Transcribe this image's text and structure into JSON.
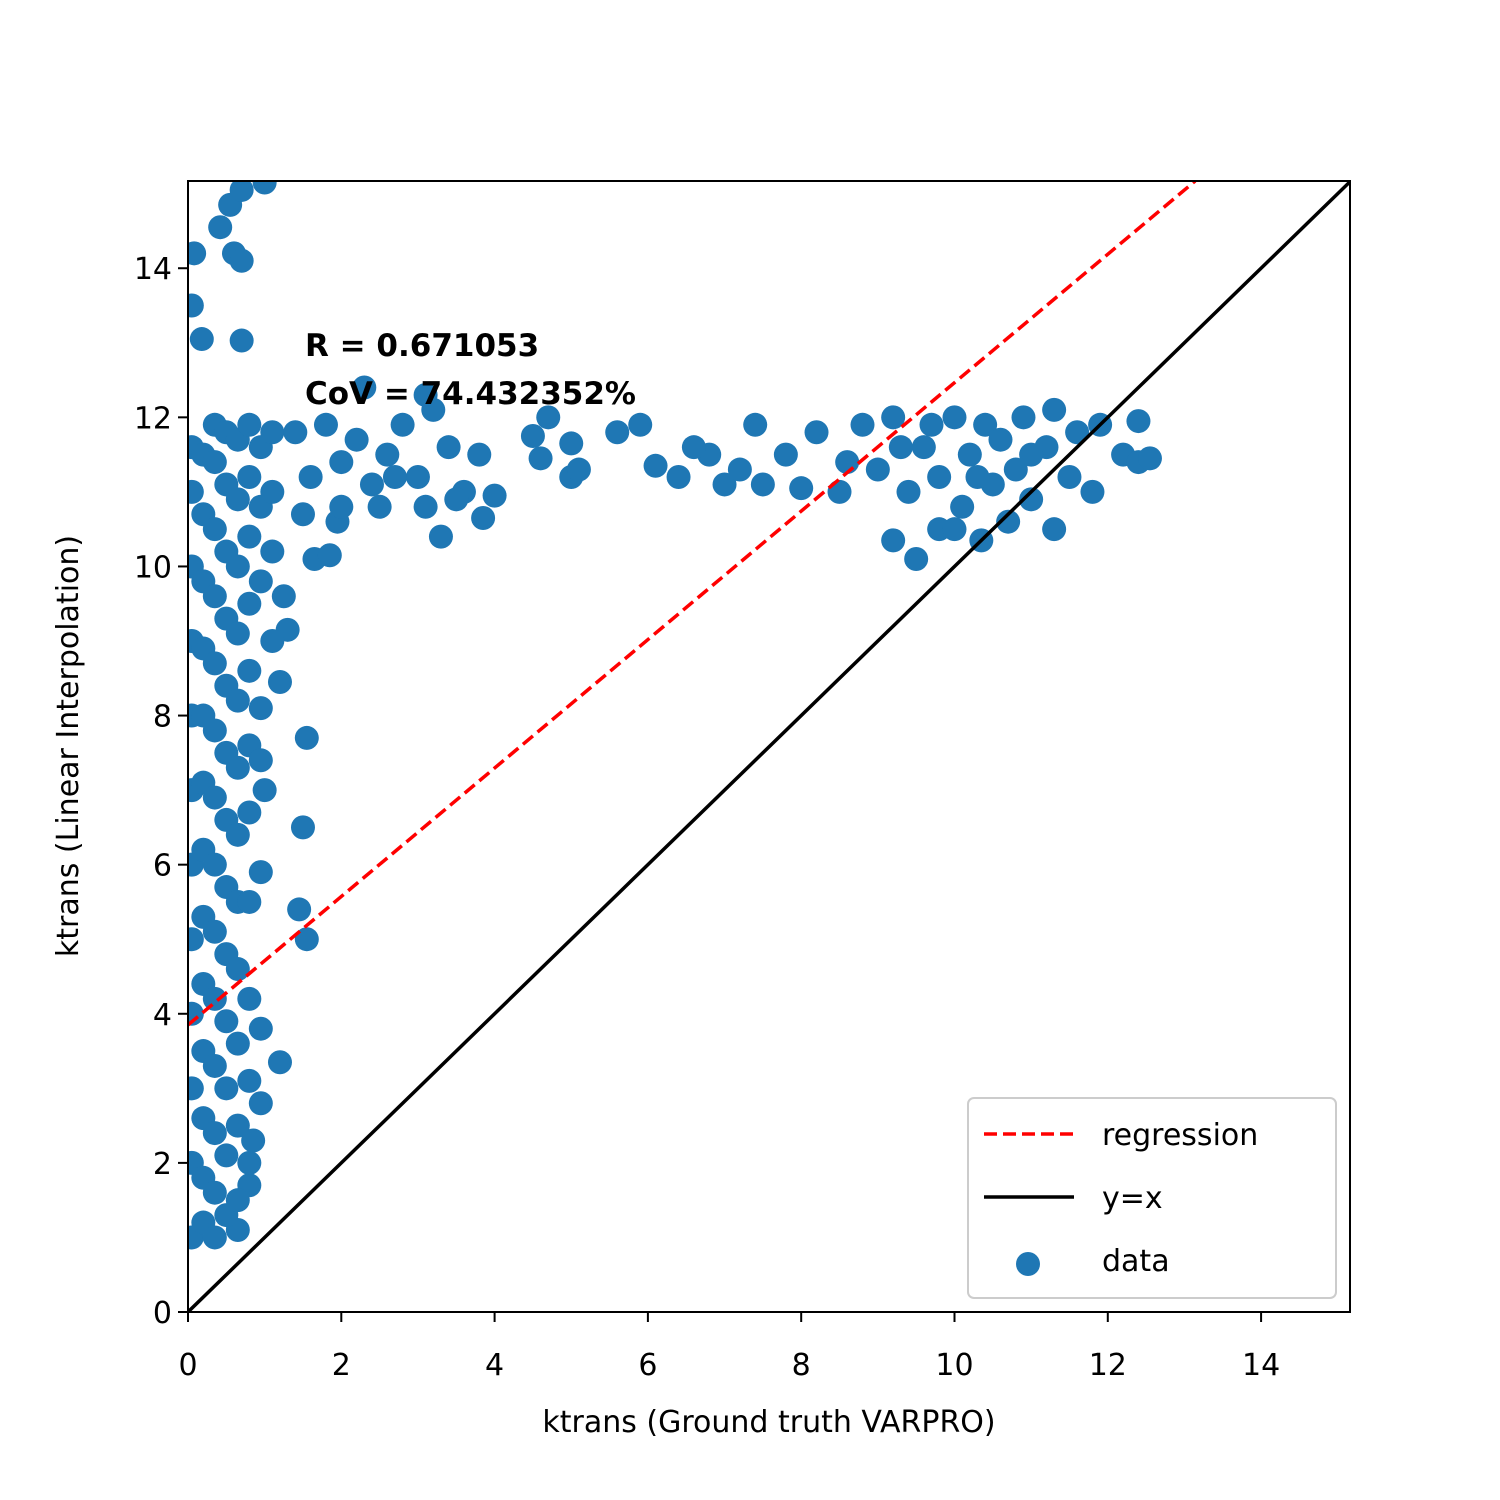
{
  "chart_data": {
    "type": "scatter",
    "xlabel": "ktrans (Ground truth VARPRO)",
    "ylabel": "ktrans (Linear Interpolation)",
    "annotations": [
      "R = 0.671053",
      "CoV = 74.432352%"
    ],
    "xlim": [
      0,
      15.16
    ],
    "ylim": [
      0,
      15.17
    ],
    "xticks": [
      0,
      2,
      4,
      6,
      8,
      10,
      12,
      14
    ],
    "yticks": [
      0,
      2,
      4,
      6,
      8,
      10,
      12,
      14
    ],
    "legend": "lower right",
    "series": [
      {
        "name": "regression",
        "kind": "line",
        "linestyle": "dashed",
        "color": "#ff0000",
        "x": [
          0,
          13.14
        ],
        "values": [
          3.85,
          15.17
        ]
      },
      {
        "name": "y=x",
        "kind": "line",
        "linestyle": "solid",
        "color": "#000000",
        "x": [
          0,
          15.16
        ],
        "values": [
          0,
          15.16
        ]
      },
      {
        "name": "data",
        "kind": "scatter",
        "color": "#1f77b4",
        "x": [
          0.08,
          0.05,
          0.18,
          0.42,
          0.55,
          0.6,
          0.7,
          0.7,
          1.0,
          0.7,
          1.55,
          1.5,
          1.45,
          1.55,
          1.3,
          1.2,
          1.25,
          1.0,
          1.2,
          0.65,
          0.8,
          0.85,
          1.65,
          1.85,
          1.95,
          2.5,
          3.3,
          3.85,
          4.0,
          4.6,
          5.0,
          5.1,
          5.0,
          5.6,
          6.1,
          6.4,
          4.5,
          4.7,
          5.9,
          6.8,
          7.0,
          7.5,
          8.0,
          8.5,
          9.2,
          9.5,
          9.8,
          10.35,
          10.7,
          11.3,
          11.8,
          12.2,
          12.4,
          12.55,
          12.4,
          11.9,
          0.05,
          0.05,
          0.05,
          0.05,
          0.05,
          0.05,
          0.05,
          0.05,
          0.05,
          0.05,
          0.05,
          0.05,
          0.2,
          0.2,
          0.2,
          0.2,
          0.2,
          0.2,
          0.2,
          0.2,
          0.2,
          0.2,
          0.2,
          0.2,
          0.2,
          0.35,
          0.35,
          0.35,
          0.35,
          0.35,
          0.35,
          0.35,
          0.35,
          0.35,
          0.35,
          0.35,
          0.35,
          0.35,
          0.35,
          0.5,
          0.5,
          0.5,
          0.5,
          0.5,
          0.5,
          0.5,
          0.5,
          0.5,
          0.5,
          0.5,
          0.5,
          0.5,
          0.65,
          0.65,
          0.65,
          0.65,
          0.65,
          0.65,
          0.65,
          0.65,
          0.65,
          0.65,
          0.65,
          0.65,
          0.8,
          0.8,
          0.8,
          0.8,
          0.8,
          0.8,
          0.8,
          0.8,
          0.8,
          0.8,
          0.8,
          0.95,
          0.95,
          0.95,
          0.95,
          0.95,
          0.95,
          0.95,
          0.95,
          1.1,
          1.1,
          1.1,
          1.1,
          1.4,
          1.6,
          1.8,
          2.0,
          2.2,
          2.4,
          2.6,
          2.8,
          3.0,
          3.1,
          3.2,
          3.4,
          3.6,
          3.8,
          2.3,
          3.1,
          2.0,
          2.7,
          3.5,
          1.5,
          8.8,
          9.0,
          9.2,
          9.4,
          9.6,
          9.8,
          10.0,
          10.1,
          10.2,
          10.4,
          10.5,
          10.6,
          10.8,
          10.9,
          11.0,
          11.2,
          11.3,
          11.5,
          11.6,
          11.0,
          10.3,
          9.7,
          9.3,
          8.6,
          8.2,
          7.8,
          7.4,
          7.2,
          6.6,
          10.0
        ],
        "values": [
          14.2,
          13.5,
          13.05,
          14.55,
          14.85,
          14.2,
          14.1,
          15.05,
          15.15,
          13.03,
          7.7,
          6.5,
          5.4,
          5.0,
          9.15,
          8.45,
          9.6,
          7.0,
          3.35,
          1.1,
          1.7,
          2.3,
          10.1,
          10.15,
          10.6,
          10.8,
          10.4,
          10.65,
          10.95,
          11.45,
          11.2,
          11.3,
          11.65,
          11.8,
          11.35,
          11.2,
          11.75,
          12.0,
          11.9,
          11.5,
          11.1,
          11.1,
          11.05,
          11.0,
          10.35,
          10.1,
          10.5,
          10.35,
          10.6,
          10.5,
          11.0,
          11.5,
          11.4,
          11.45,
          11.95,
          11.9,
          1.0,
          2.0,
          3.0,
          4.0,
          5.0,
          6.0,
          7.0,
          8.0,
          9.0,
          10.0,
          11.0,
          11.6,
          1.2,
          1.8,
          2.6,
          3.5,
          4.4,
          5.3,
          6.2,
          7.1,
          8.0,
          8.9,
          9.8,
          10.7,
          11.5,
          1.0,
          1.6,
          2.4,
          3.3,
          4.2,
          5.1,
          6.0,
          6.9,
          7.8,
          8.7,
          9.6,
          10.5,
          11.4,
          11.9,
          1.3,
          2.1,
          3.0,
          3.9,
          4.8,
          5.7,
          6.6,
          7.5,
          8.4,
          9.3,
          10.2,
          11.1,
          11.8,
          1.5,
          2.5,
          3.6,
          4.6,
          5.5,
          6.4,
          7.3,
          8.2,
          9.1,
          10.0,
          10.9,
          11.7,
          2.0,
          3.1,
          4.2,
          5.5,
          6.7,
          7.6,
          8.6,
          9.5,
          10.4,
          11.2,
          11.9,
          2.8,
          3.8,
          5.9,
          7.4,
          8.1,
          9.8,
          10.8,
          11.6,
          9.0,
          10.2,
          11.0,
          11.8,
          11.8,
          11.2,
          11.9,
          11.4,
          11.7,
          11.1,
          11.5,
          11.9,
          11.2,
          10.8,
          12.1,
          11.6,
          11.0,
          11.5,
          12.4,
          12.3,
          10.8,
          11.2,
          10.9,
          10.7,
          11.9,
          11.3,
          12.0,
          11.0,
          11.6,
          11.2,
          12.0,
          10.8,
          11.5,
          11.9,
          11.1,
          11.7,
          11.3,
          12.0,
          10.9,
          11.6,
          12.1,
          11.2,
          11.8,
          11.5,
          11.2,
          11.9,
          11.6,
          11.4,
          11.8,
          11.5,
          11.9,
          11.3,
          11.6,
          10.5
        ]
      }
    ]
  }
}
